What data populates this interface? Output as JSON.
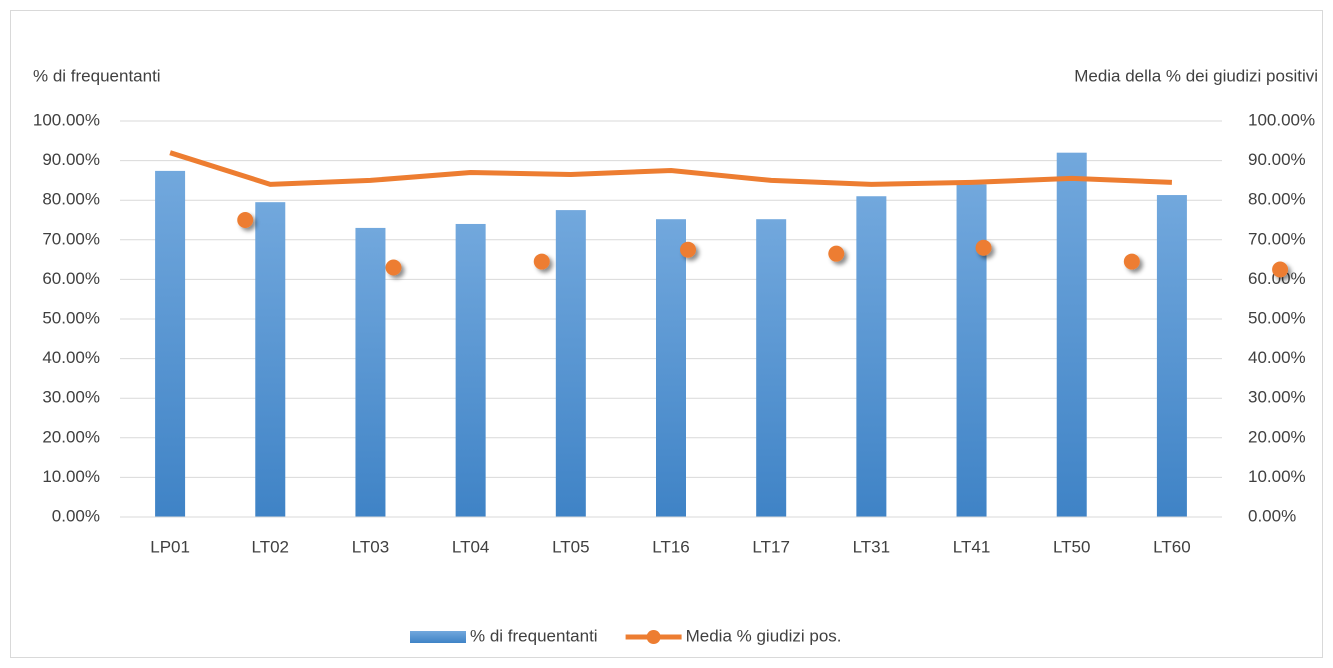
{
  "chart_data": {
    "type": "bar",
    "y_label": "% di frequentanti",
    "y2_label": "Media della % dei giudizi positivi",
    "categories": [
      "LP01",
      "LT02",
      "LT03",
      "LT04",
      "LT05",
      "LT16",
      "LT17",
      "LT31",
      "LT41",
      "LT50",
      "LT60"
    ],
    "series": [
      {
        "name": "% di frequentanti",
        "type": "bar",
        "color": "#5b9bd5",
        "values": [
          87.4,
          79.5,
          73,
          74,
          77.5,
          75.2,
          75.2,
          81,
          84,
          92,
          81.3
        ]
      },
      {
        "name": "Media % giudizi pos.",
        "type": "line",
        "axis": "y2",
        "color": "#ed7d31",
        "values": [
          92,
          84,
          85,
          87,
          86.5,
          87.5,
          85,
          84,
          84.5,
          85.5,
          84.5
        ]
      },
      {
        "type": "scatter",
        "axis": "y2",
        "color": "#ed7d31",
        "x": [
          0.75,
          2.23,
          3.71,
          5.17,
          6.65,
          8.12,
          9.6,
          11.08
        ],
        "values": [
          75,
          63,
          64.5,
          67.5,
          66.5,
          68,
          64.5,
          62.5
        ]
      }
    ],
    "ylim": [
      0,
      100
    ],
    "yticks": [
      {
        "value": 0,
        "label": "0.00%"
      },
      {
        "value": 10,
        "label": "10.00%"
      },
      {
        "value": 20,
        "label": "20.00%"
      },
      {
        "value": 30,
        "label": "30.00%"
      },
      {
        "value": 40,
        "label": "40.00%"
      },
      {
        "value": 50,
        "label": "50.00%"
      },
      {
        "value": 60,
        "label": "60.00%"
      },
      {
        "value": 70,
        "label": "70.00%"
      },
      {
        "value": 80,
        "label": "80.00%"
      },
      {
        "value": 90,
        "label": "90.00%"
      },
      {
        "value": 100,
        "label": "100.00%"
      }
    ],
    "y2lim": [
      0,
      100
    ],
    "y2ticks": [
      {
        "value": 0,
        "label": "0.00%"
      },
      {
        "value": 10,
        "label": "10.00%"
      },
      {
        "value": 20,
        "label": "20.00%"
      },
      {
        "value": 30,
        "label": "30.00%"
      },
      {
        "value": 40,
        "label": "40.00%"
      },
      {
        "value": 50,
        "label": "50.00%"
      },
      {
        "value": 60,
        "label": "60.00%"
      },
      {
        "value": 70,
        "label": "70.00%"
      },
      {
        "value": 80,
        "label": "80.00%"
      },
      {
        "value": 90,
        "label": "90.00%"
      },
      {
        "value": 100,
        "label": "100.00%"
      }
    ],
    "grid": true,
    "legend": "bottom"
  }
}
